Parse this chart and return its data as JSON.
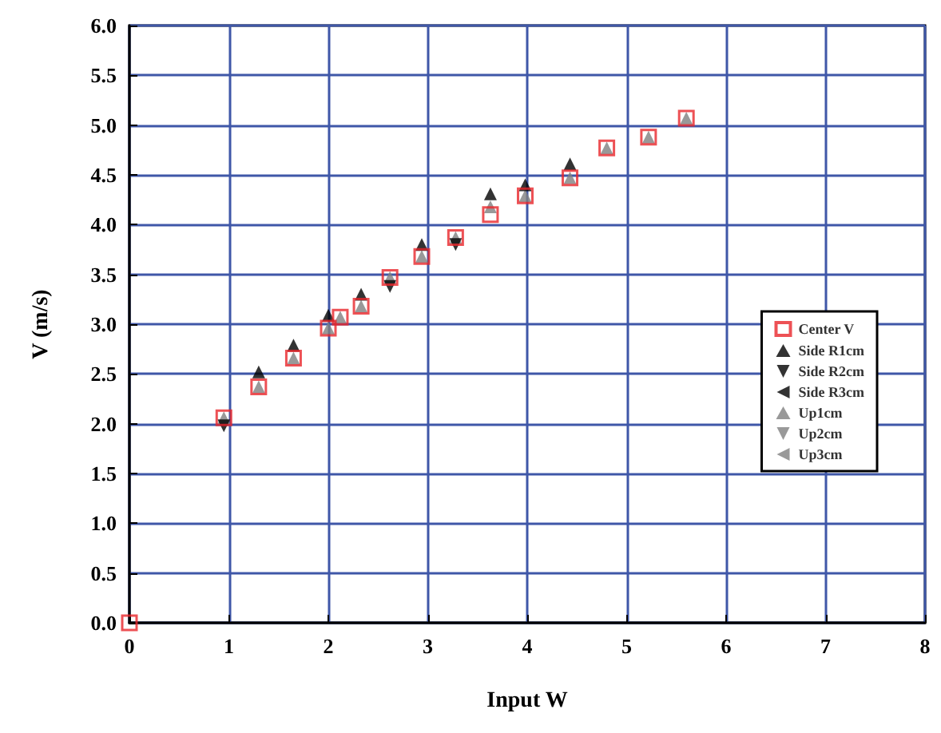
{
  "chart_data": {
    "type": "scatter",
    "xlabel": "Input W",
    "ylabel": "V (m/s)",
    "xlim": [
      0,
      8
    ],
    "xticks": [
      0,
      1,
      2,
      3,
      4,
      5,
      6,
      7,
      8
    ],
    "ylim": [
      0,
      6
    ],
    "yticks": [
      {
        "value": 0,
        "label": "0.0"
      },
      {
        "value": 0.5,
        "label": "0.5"
      },
      {
        "value": 1,
        "label": "1.0"
      },
      {
        "value": 1.5,
        "label": "1.5"
      },
      {
        "value": 2,
        "label": "2.0"
      },
      {
        "value": 2.5,
        "label": "2.5"
      },
      {
        "value": 3,
        "label": "3.0"
      },
      {
        "value": 3.5,
        "label": "3.5"
      },
      {
        "value": 4,
        "label": "4.0"
      },
      {
        "value": 4.5,
        "label": "4.5"
      },
      {
        "value": 5,
        "label": "5.0"
      },
      {
        "value": 5.5,
        "label": "5.5"
      },
      {
        "value": 6,
        "label": "6.0"
      }
    ],
    "grid": true,
    "legend": "right",
    "series": [
      {
        "name": "Center V",
        "color": "#e8262a",
        "marker": "square",
        "x": [
          0,
          0.95,
          1.3,
          1.65,
          2.0,
          2.12,
          2.33,
          2.62,
          2.94,
          3.28,
          3.63,
          3.98,
          4.43,
          4.8,
          5.22,
          5.6
        ],
        "values": [
          0,
          2.06,
          2.37,
          2.66,
          2.96,
          3.07,
          3.18,
          3.47,
          3.68,
          3.87,
          4.1,
          4.29,
          4.47,
          4.77,
          4.88,
          5.07
        ]
      },
      {
        "name": "Side R1cm",
        "color": "#000000",
        "marker": "triangle",
        "x": [
          1.3,
          1.65,
          2.0,
          2.33,
          2.94,
          3.63,
          3.98,
          4.43
        ],
        "values": [
          2.52,
          2.79,
          3.09,
          3.3,
          3.8,
          4.31,
          4.4,
          4.61
        ]
      },
      {
        "name": "Side R2cm",
        "color": "#000000",
        "marker": "triangle-down",
        "x": [
          0.95,
          2.62,
          3.28
        ],
        "values": [
          1.98,
          3.38,
          3.8
        ]
      },
      {
        "name": "Side R3cm",
        "color": "#000000",
        "marker": "triangle-left"
      },
      {
        "name": "Up1cm",
        "color": "#808080",
        "marker": "triangle",
        "x": [
          0.95,
          1.3,
          1.65,
          2.0,
          2.12,
          2.33,
          2.62,
          2.94,
          3.28,
          3.63,
          3.98,
          4.43,
          4.8,
          5.22,
          5.6
        ],
        "values": [
          2.06,
          2.37,
          2.66,
          2.96,
          3.07,
          3.18,
          3.47,
          3.68,
          3.87,
          4.18,
          4.29,
          4.47,
          4.77,
          4.88,
          5.07
        ]
      },
      {
        "name": "Up2cm",
        "color": "#808080",
        "marker": "triangle-down"
      },
      {
        "name": "Up3cm",
        "color": "#808080",
        "marker": "triangle-left"
      }
    ]
  }
}
